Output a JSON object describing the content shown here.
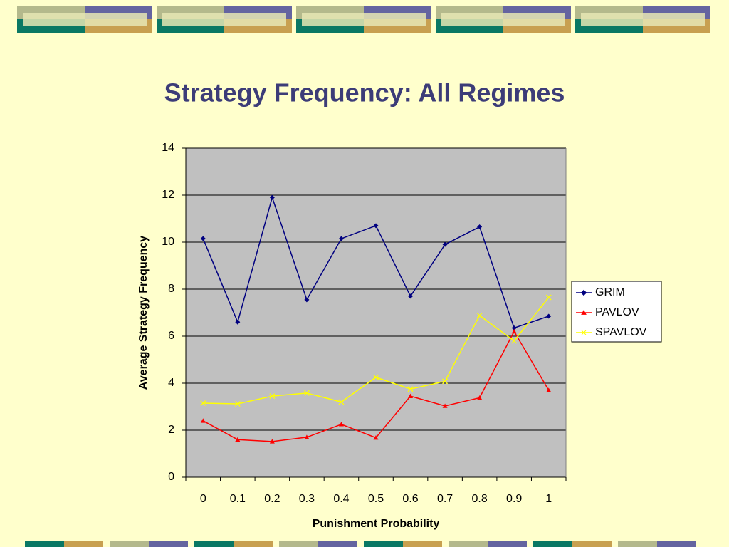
{
  "chart_data": {
    "type": "line",
    "title": "Strategy Frequency: All Regimes",
    "x_label": "Punishment Probability",
    "y_label": "Average Strategy Frequency",
    "categories": [
      "0",
      "0.1",
      "0.2",
      "0.3",
      "0.4",
      "0.5",
      "0.6",
      "0.7",
      "0.8",
      "0.9",
      "1"
    ],
    "series": [
      {
        "name": "GRIM",
        "color": "#000080",
        "marker": "diamond",
        "values": [
          10.15,
          6.6,
          11.9,
          7.55,
          10.15,
          10.7,
          7.7,
          9.9,
          10.65,
          6.35,
          6.85
        ]
      },
      {
        "name": "PAVLOV",
        "color": "#ff0000",
        "marker": "triangle",
        "values": [
          2.4,
          1.6,
          1.52,
          1.7,
          2.25,
          1.68,
          3.45,
          3.03,
          3.38,
          6.2,
          3.7
        ]
      },
      {
        "name": "SPAVLOV",
        "color": "#ffff00",
        "marker": "x",
        "values": [
          3.15,
          3.12,
          3.45,
          3.58,
          3.2,
          4.25,
          3.75,
          4.08,
          6.88,
          5.8,
          7.65
        ]
      }
    ],
    "ylim": [
      0,
      14
    ],
    "yticks": [
      0,
      2,
      4,
      6,
      8,
      10,
      12,
      14
    ],
    "grid": true,
    "legend": "right"
  }
}
